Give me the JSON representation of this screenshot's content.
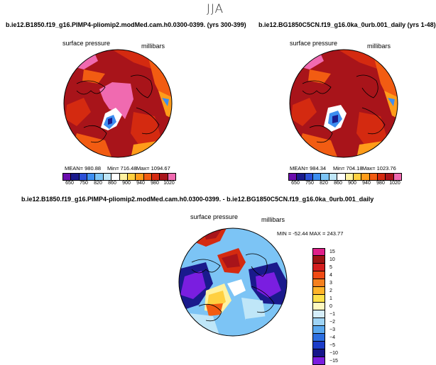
{
  "header": {
    "title": "JJA"
  },
  "panels": [
    {
      "title": "b.ie12.B1850.f19_g16.PIMP4-pliomip2.modMed.cam.h0.0300-0399. (yrs 300-399)",
      "variable": "surface pressure",
      "units": "millibars",
      "stats": {
        "mean": "MEAN= 980.88",
        "min": "Min= 716.48",
        "max": "Max= 1094.67"
      }
    },
    {
      "title": "b.ie12.BG1850C5CN.f19_g16.0ka_0urb.001_daily (yrs 1-48)",
      "variable": "surface pressure",
      "units": "millibars",
      "stats": {
        "mean": "MEAN= 984.34",
        "min": "Min= 704.18",
        "max": "Max= 1023.76"
      }
    }
  ],
  "diff_panel": {
    "title": "b.ie12.B1850.f19_g16.PIMP4-pliomip2.modMed.cam.h0.0300-0399. - b.ie12.BG1850C5CN.f19_g16.0ka_0urb.001_daily",
    "variable": "surface pressure",
    "units": "millibars",
    "minmax": "MIN = -52.44  MAX = 243.77"
  },
  "colorbar_top": {
    "colors": [
      "#6a0dad",
      "#1a1a8c",
      "#2b4fd6",
      "#3d8ef0",
      "#7cc4f5",
      "#bfe6f8",
      "#ffffff",
      "#fff2a0",
      "#ffd040",
      "#ff9c1a",
      "#f25c12",
      "#d42a10",
      "#a8141a",
      "#f06ab0"
    ],
    "ticks": [
      "650",
      "750",
      "820",
      "860",
      "900",
      "940",
      "980",
      "1020"
    ]
  },
  "colorbar_diff": {
    "colors": [
      "#e0208a",
      "#9c1414",
      "#d41e1e",
      "#f04a14",
      "#f5801e",
      "#ffb42a",
      "#ffe14a",
      "#fff8c0",
      "#d6eefa",
      "#9fd4f5",
      "#5aa8ee",
      "#2c6ee0",
      "#1c3cc8",
      "#16168a",
      "#7a1ee0"
    ],
    "labels": [
      "15",
      "10",
      "5",
      "4",
      "3",
      "2",
      "1",
      "0",
      "−1",
      "−2",
      "−3",
      "−4",
      "−5",
      "−10",
      "−15"
    ]
  }
}
